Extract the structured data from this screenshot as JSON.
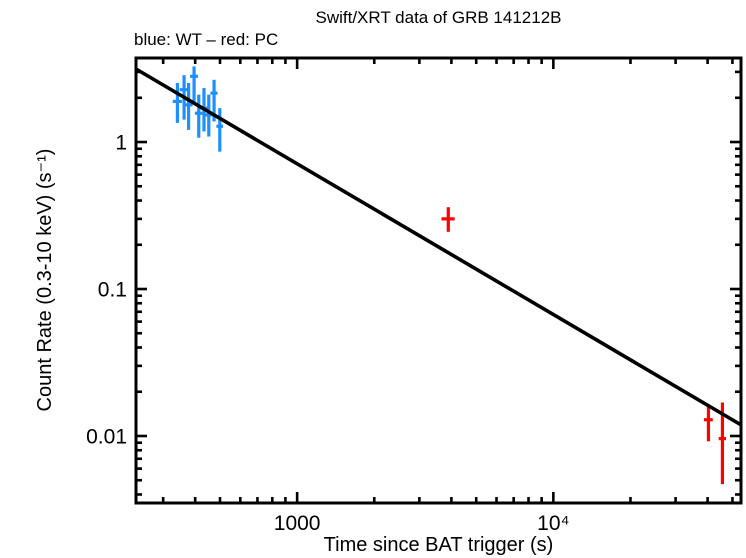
{
  "chart_data": {
    "type": "scatter",
    "title": "Swift/XRT data of GRB 141212B",
    "subtitle": "blue: WT – red: PC",
    "xlabel": "Time since BAT trigger (s)",
    "ylabel": "Count Rate (0.3-10 keV) (s⁻¹)",
    "xscale": "log",
    "yscale": "log",
    "xlim": [
      235,
      54000
    ],
    "ylim": [
      0.0035,
      3.73
    ],
    "grid": false,
    "x_major_ticks": [
      {
        "value": 1000,
        "label": "1000"
      },
      {
        "value": 10000,
        "label": "10⁴"
      }
    ],
    "y_major_ticks": [
      {
        "value": 1,
        "label": "1"
      },
      {
        "value": 0.1,
        "label": "0.1"
      },
      {
        "value": 0.01,
        "label": "0.01"
      }
    ],
    "series": [
      {
        "name": "WT",
        "color": "#1e8fff",
        "points": [
          {
            "t": 341,
            "t_err": 14,
            "rate": 1.89,
            "rate_hi": 2.52,
            "rate_lo": 1.35
          },
          {
            "t": 362,
            "t_err": 14,
            "rate": 2.27,
            "rate_hi": 2.85,
            "rate_lo": 1.42
          },
          {
            "t": 377,
            "t_err": 14,
            "rate": 1.79,
            "rate_hi": 2.52,
            "rate_lo": 1.21
          },
          {
            "t": 396,
            "t_err": 14,
            "rate": 2.8,
            "rate_hi": 3.27,
            "rate_lo": 1.84
          },
          {
            "t": 413,
            "t_err": 14,
            "rate": 1.57,
            "rate_hi": 2.1,
            "rate_lo": 1.07
          },
          {
            "t": 433,
            "t_err": 14,
            "rate": 1.7,
            "rate_hi": 2.33,
            "rate_lo": 1.18
          },
          {
            "t": 452,
            "t_err": 14,
            "rate": 1.53,
            "rate_hi": 2.1,
            "rate_lo": 1.09
          },
          {
            "t": 474,
            "t_err": 15,
            "rate": 2.15,
            "rate_hi": 2.65,
            "rate_lo": 1.38
          },
          {
            "t": 499,
            "t_err": 15,
            "rate": 1.28,
            "rate_hi": 1.7,
            "rate_lo": 0.86
          }
        ]
      },
      {
        "name": "PC",
        "color": "#ff0000",
        "points": [
          {
            "t": 3890,
            "t_err": 230,
            "rate": 0.3,
            "rate_hi": 0.36,
            "rate_lo": 0.245
          },
          {
            "t": 40300,
            "t_err": 1600,
            "rate": 0.0129,
            "rate_hi": 0.0163,
            "rate_lo": 0.0092
          },
          {
            "t": 45700,
            "t_err": 1500,
            "rate": 0.0096,
            "rate_hi": 0.0169,
            "rate_lo": 0.0047
          }
        ]
      }
    ],
    "fit_line": {
      "color": "#000000",
      "start": {
        "t": 235,
        "rate": 3.14
      },
      "end": {
        "t": 54000,
        "rate": 0.0119
      }
    }
  }
}
